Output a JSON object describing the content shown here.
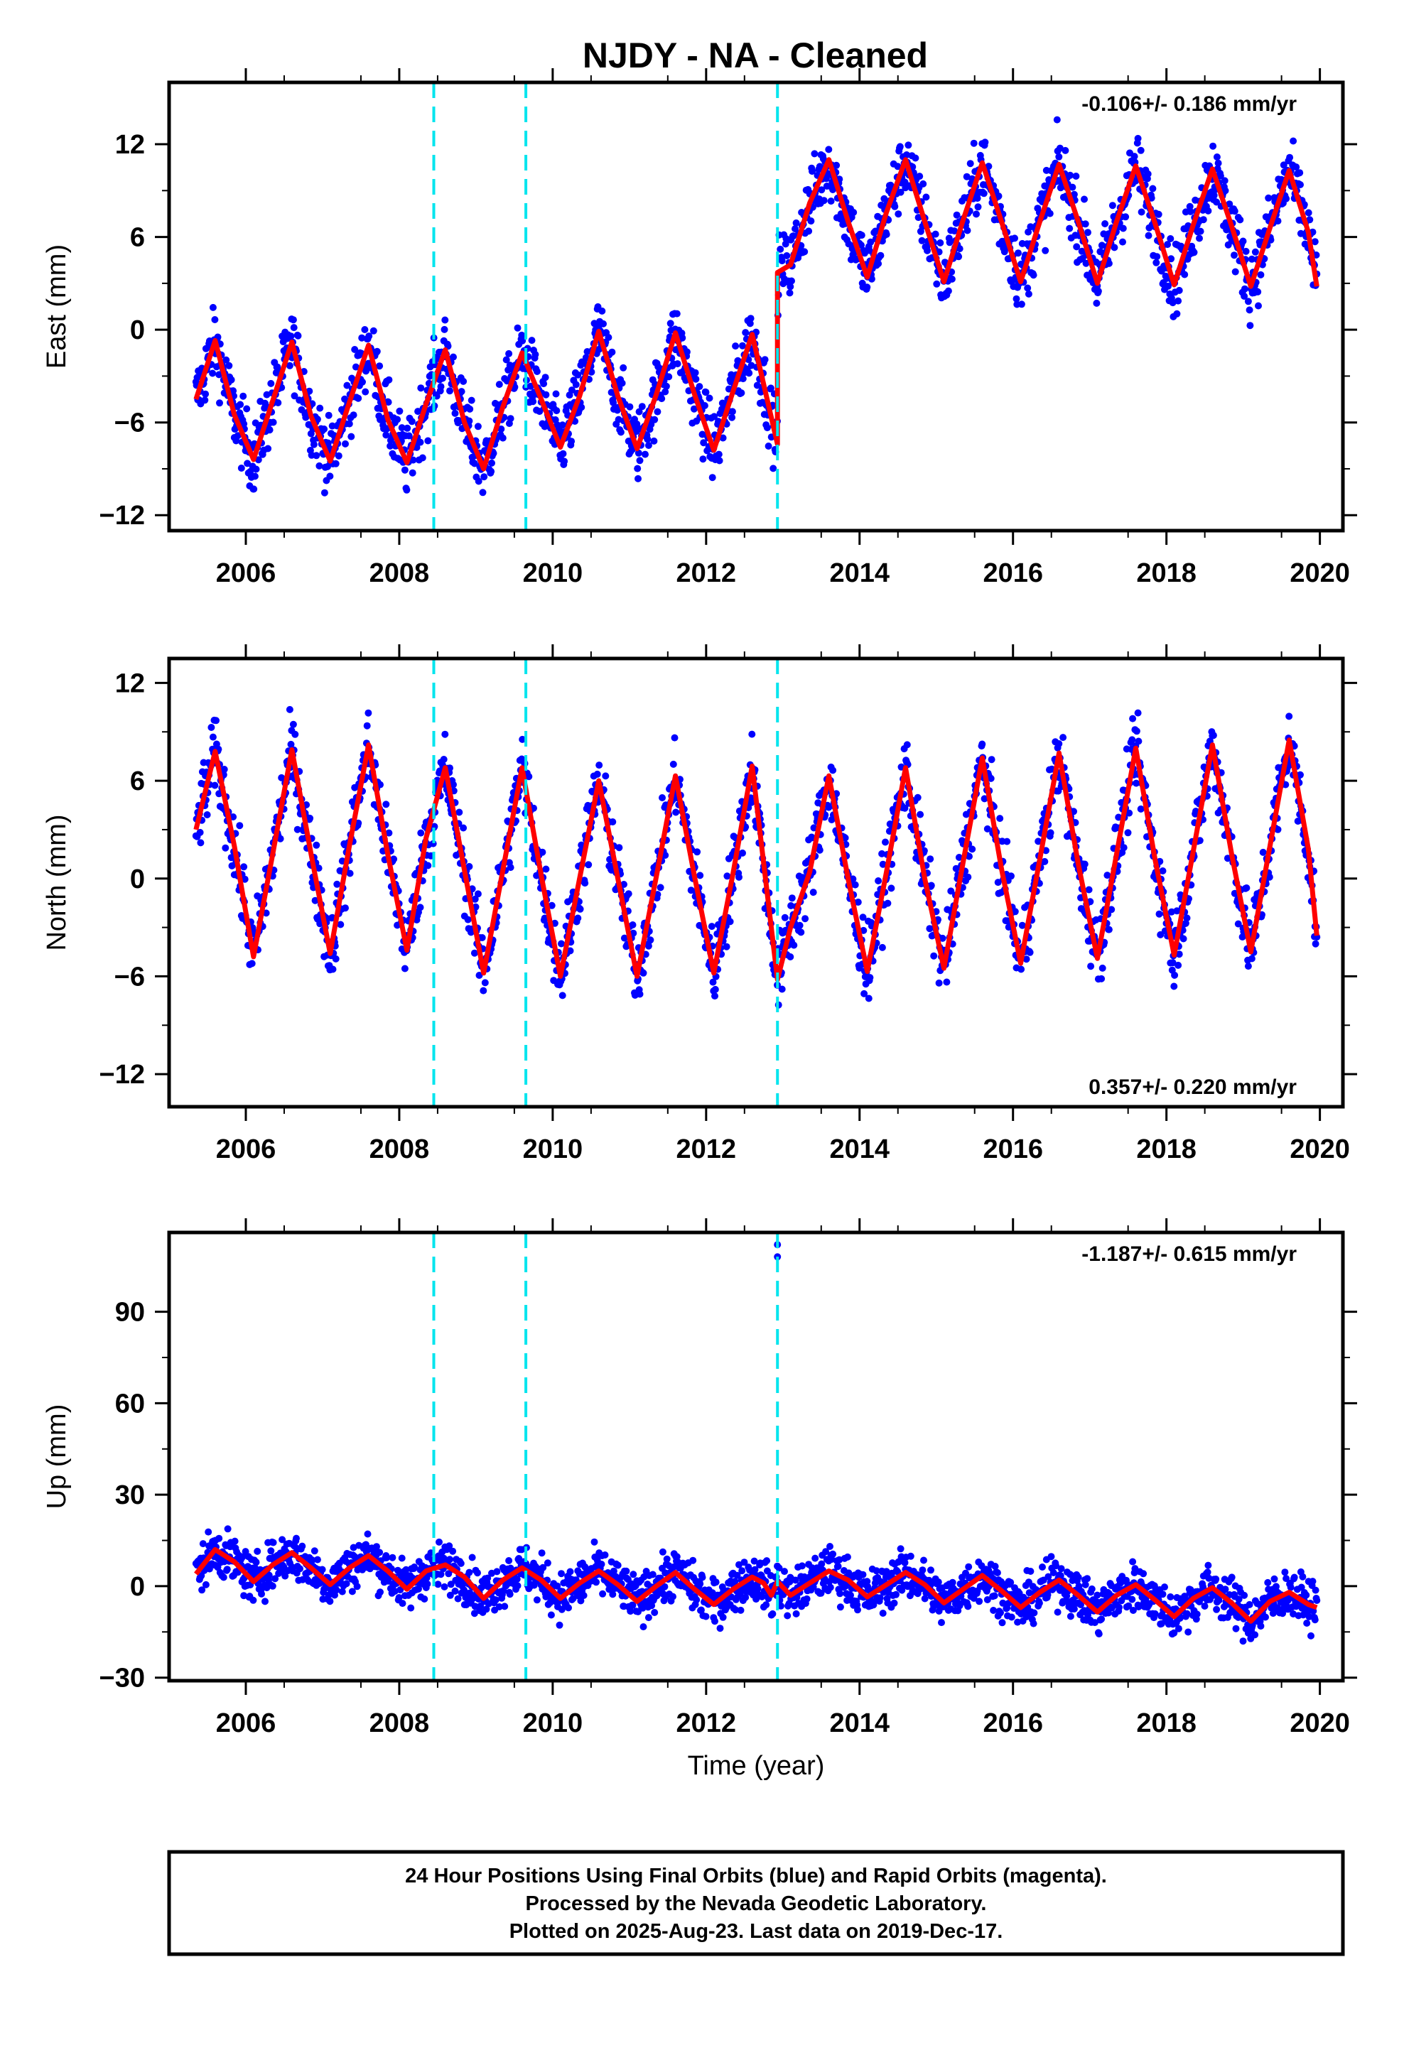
{
  "title": "NJDY  - NA - Cleaned",
  "footer": {
    "lines": [
      "24 Hour Positions Using Final Orbits (blue) and Rapid Orbits (magenta).",
      "Processed by the Nevada Geodetic Laboratory.",
      "Plotted on 2025-Aug-23. Last data on 2019-Dec-17."
    ]
  },
  "colors": {
    "points": "#0000ff",
    "model": "#ff0000",
    "events": "#00e5ee",
    "frame": "#000000"
  },
  "chart_data": [
    {
      "type": "scatter",
      "ylabel": "East (mm)",
      "xlabel": "",
      "rate_label": "-0.106+/- 0.186 mm/yr",
      "rate_position": "top-right",
      "xlim": [
        2005.0,
        2020.3
      ],
      "ylim": [
        -13.0,
        16.0
      ],
      "xticks": [
        2006,
        2008,
        2010,
        2012,
        2014,
        2016,
        2018,
        2020
      ],
      "yticks": [
        -12,
        -6,
        0,
        6,
        12
      ],
      "event_lines": [
        2008.45,
        2009.65,
        2012.93
      ],
      "series": [
        {
          "kind": "model",
          "x": [
            2005.35,
            2005.6,
            2005.85,
            2006.1,
            2006.35,
            2006.6,
            2006.85,
            2007.1,
            2007.35,
            2007.6,
            2007.85,
            2008.1,
            2008.35,
            2008.6,
            2008.85,
            2009.1,
            2009.35,
            2009.6,
            2009.85,
            2010.1,
            2010.35,
            2010.6,
            2010.85,
            2011.1,
            2011.35,
            2011.6,
            2011.85,
            2012.1,
            2012.35,
            2012.6,
            2012.93,
            2012.93,
            2013.1,
            2013.35,
            2013.6,
            2013.85,
            2014.1,
            2014.35,
            2014.6,
            2014.85,
            2015.1,
            2015.35,
            2015.6,
            2015.85,
            2016.1,
            2016.35,
            2016.6,
            2016.85,
            2017.1,
            2017.35,
            2017.6,
            2017.85,
            2018.1,
            2018.35,
            2018.6,
            2018.85,
            2019.1,
            2019.35,
            2019.6,
            2019.85,
            2019.96
          ],
          "y": [
            -4.5,
            -0.7,
            -5.5,
            -8.4,
            -4.6,
            -0.8,
            -5.6,
            -8.5,
            -4.7,
            -1.0,
            -5.8,
            -8.6,
            -4.8,
            -1.3,
            -6.0,
            -9.0,
            -5.0,
            -1.5,
            -4.5,
            -7.6,
            -4.3,
            -0.1,
            -4.3,
            -7.7,
            -4.2,
            -0.2,
            -4.2,
            -7.8,
            -4.0,
            -0.3,
            -7.4,
            3.7,
            4.2,
            8.2,
            11.0,
            7.0,
            3.4,
            7.6,
            11.0,
            7.0,
            3.1,
            7.1,
            10.8,
            7.0,
            3.1,
            7.0,
            10.7,
            7.0,
            3.0,
            7.0,
            10.6,
            6.9,
            2.9,
            6.8,
            10.4,
            6.7,
            2.8,
            6.6,
            10.3,
            6.3,
            2.8
          ]
        }
      ]
    },
    {
      "type": "scatter",
      "ylabel": "North (mm)",
      "xlabel": "",
      "rate_label": "0.357+/- 0.220 mm/yr",
      "rate_position": "bottom-right",
      "xlim": [
        2005.0,
        2020.3
      ],
      "ylim": [
        -14.0,
        13.5
      ],
      "xticks": [
        2006,
        2008,
        2010,
        2012,
        2014,
        2016,
        2018,
        2020
      ],
      "yticks": [
        -12,
        -6,
        0,
        6,
        12
      ],
      "event_lines": [
        2008.45,
        2009.65,
        2012.93
      ],
      "series": [
        {
          "kind": "model",
          "x": [
            2005.35,
            2005.6,
            2005.85,
            2006.1,
            2006.35,
            2006.6,
            2006.85,
            2007.1,
            2007.35,
            2007.6,
            2007.85,
            2008.1,
            2008.35,
            2008.6,
            2008.85,
            2009.1,
            2009.35,
            2009.6,
            2009.85,
            2010.1,
            2010.35,
            2010.6,
            2010.85,
            2011.1,
            2011.35,
            2011.6,
            2011.85,
            2012.1,
            2012.35,
            2012.6,
            2012.93,
            2013.1,
            2013.35,
            2013.6,
            2013.85,
            2014.1,
            2014.35,
            2014.6,
            2014.85,
            2015.1,
            2015.35,
            2015.6,
            2015.85,
            2016.1,
            2016.35,
            2016.6,
            2016.85,
            2017.1,
            2017.35,
            2017.6,
            2017.85,
            2018.1,
            2018.35,
            2018.6,
            2018.85,
            2019.1,
            2019.35,
            2019.6,
            2019.85,
            2019.96
          ],
          "y": [
            3.0,
            7.8,
            2.0,
            -4.8,
            1.5,
            7.9,
            1.5,
            -4.6,
            2.0,
            8.2,
            1.5,
            -4.4,
            2.5,
            6.8,
            0.5,
            -5.8,
            0.5,
            6.8,
            0.2,
            -6.0,
            0.0,
            6.0,
            0.0,
            -6.0,
            0.1,
            6.3,
            0.1,
            -5.8,
            0.3,
            6.9,
            -6.2,
            -3.0,
            0.4,
            6.3,
            0.0,
            -5.7,
            0.4,
            6.8,
            0.0,
            -5.5,
            1.0,
            7.4,
            0.6,
            -5.2,
            1.2,
            7.7,
            0.9,
            -4.9,
            1.5,
            8.0,
            1.2,
            -4.7,
            1.7,
            8.2,
            1.5,
            -4.5,
            2.0,
            8.5,
            1.8,
            -3.5
          ]
        }
      ]
    },
    {
      "type": "scatter",
      "ylabel": "Up (mm)",
      "xlabel": "Time (year)",
      "rate_label": "-1.187+/- 0.615 mm/yr",
      "rate_position": "top-right",
      "xlim": [
        2005.0,
        2020.3
      ],
      "ylim": [
        -31.0,
        116.0
      ],
      "xticks": [
        2006,
        2008,
        2010,
        2012,
        2014,
        2016,
        2018,
        2020
      ],
      "yticks": [
        -30,
        0,
        30,
        60,
        90
      ],
      "event_lines": [
        2008.45,
        2009.65,
        2012.93
      ],
      "outliers": [
        {
          "x": 2012.93,
          "y": 112
        },
        {
          "x": 2012.93,
          "y": 108
        }
      ],
      "series": [
        {
          "kind": "model",
          "x": [
            2005.35,
            2005.6,
            2005.85,
            2006.1,
            2006.35,
            2006.6,
            2006.85,
            2007.1,
            2007.35,
            2007.6,
            2007.85,
            2008.1,
            2008.35,
            2008.6,
            2008.85,
            2009.1,
            2009.35,
            2009.6,
            2009.85,
            2010.1,
            2010.35,
            2010.6,
            2010.85,
            2011.1,
            2011.35,
            2011.6,
            2011.85,
            2012.1,
            2012.35,
            2012.6,
            2012.75,
            2012.85,
            2012.93,
            2013.1,
            2013.35,
            2013.6,
            2013.85,
            2014.1,
            2014.35,
            2014.6,
            2014.85,
            2015.1,
            2015.35,
            2015.6,
            2015.85,
            2016.1,
            2016.35,
            2016.6,
            2016.85,
            2017.1,
            2017.35,
            2017.6,
            2017.85,
            2018.1,
            2018.35,
            2018.6,
            2018.85,
            2019.1,
            2019.35,
            2019.6,
            2019.85,
            2019.96
          ],
          "y": [
            4.0,
            12.0,
            8.0,
            1.5,
            7.0,
            11.0,
            6.0,
            0.5,
            6.0,
            10.0,
            5.0,
            -1.0,
            5.0,
            7.0,
            3.0,
            -4.0,
            2.0,
            6.0,
            2.0,
            -4.0,
            1.0,
            5.0,
            0.5,
            -5.0,
            0.0,
            4.5,
            -1.0,
            -6.0,
            -1.0,
            3.0,
            1.0,
            -3.0,
            1.5,
            -3.0,
            1.0,
            5.0,
            2.0,
            -3.5,
            0.5,
            4.5,
            0.5,
            -5.5,
            -1.0,
            3.5,
            -1.5,
            -7.0,
            -2.0,
            2.0,
            -3.0,
            -8.5,
            -3.0,
            0.5,
            -4.5,
            -10.0,
            -4.0,
            -0.5,
            -5.5,
            -11.5,
            -5.0,
            -2.0,
            -6.0,
            -7.0
          ]
        }
      ]
    }
  ]
}
